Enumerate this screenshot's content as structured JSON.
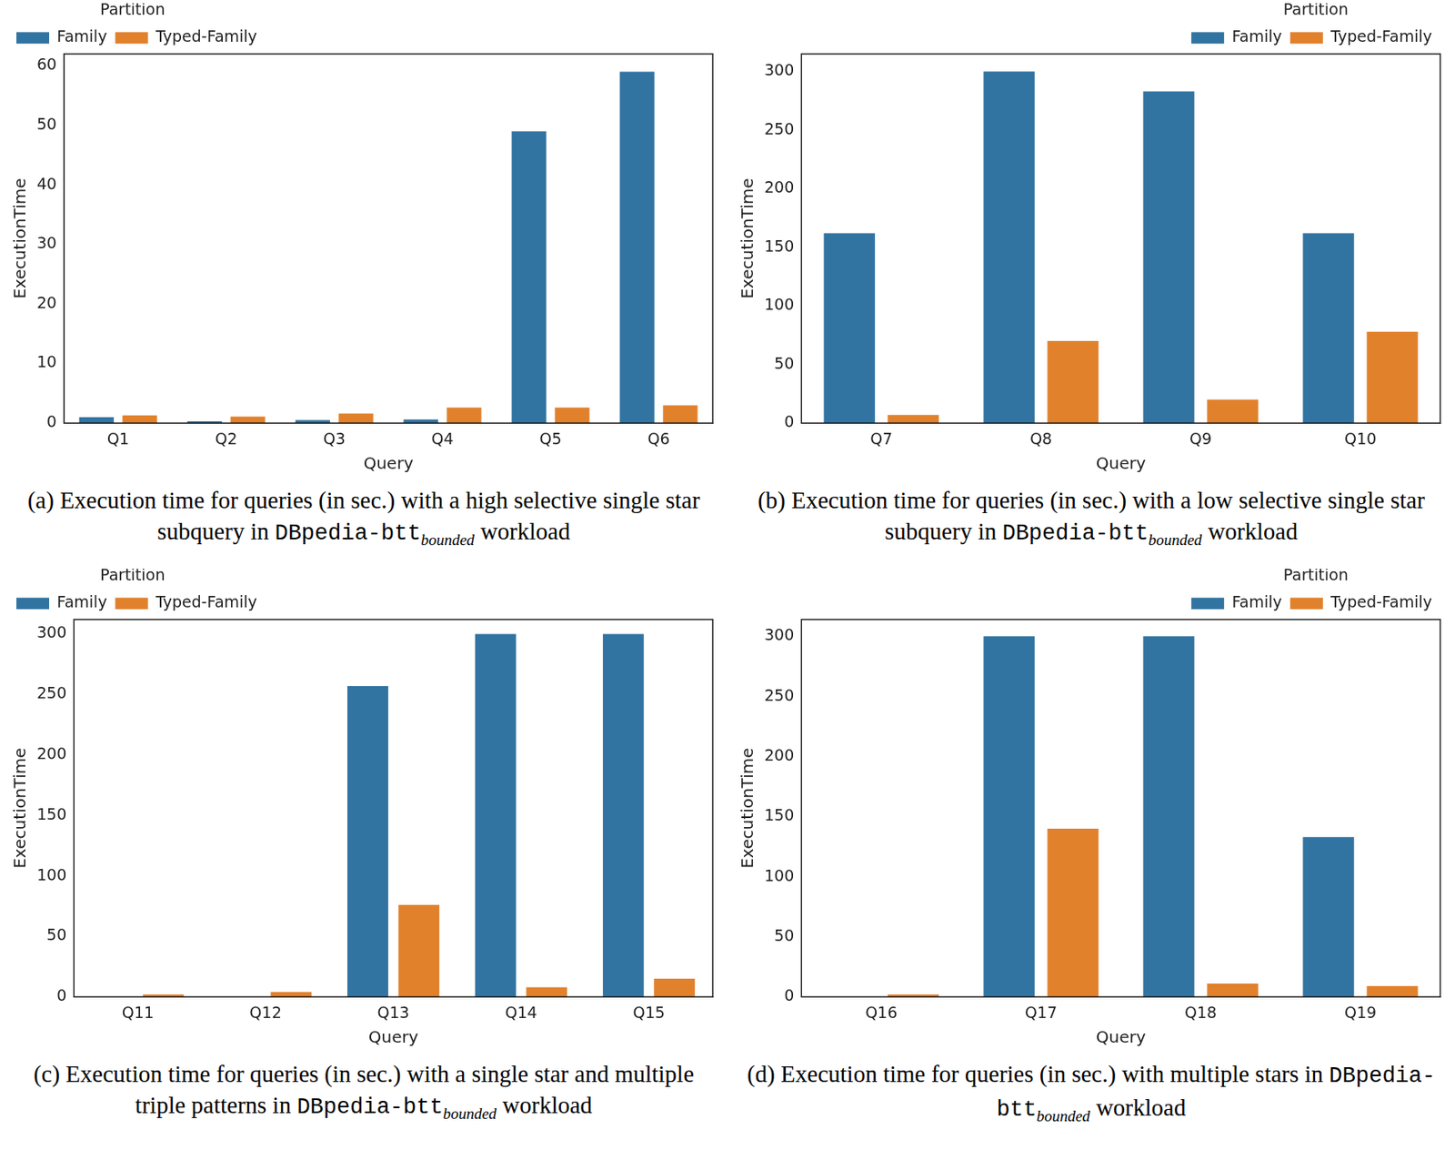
{
  "chart_data": [
    {
      "type": "bar",
      "x_label": "Query",
      "y_label": "ExecutionTime",
      "categories": [
        "Q1",
        "Q2",
        "Q3",
        "Q4",
        "Q5",
        "Q6"
      ],
      "series": [
        {
          "name": "Family",
          "color": "#3274a1",
          "values": [
            1.0,
            0.3,
            0.5,
            0.6,
            49,
            59
          ]
        },
        {
          "name": "Typed-Family",
          "color": "#e1812c",
          "values": [
            1.3,
            1.1,
            1.6,
            2.6,
            2.6,
            3.0
          ]
        }
      ],
      "legend_title": "Partition",
      "legend": "upper left",
      "ylim": [
        0,
        62
      ],
      "yticks": [
        0,
        10,
        20,
        30,
        40,
        50,
        60
      ],
      "grid": false,
      "caption": {
        "text": "(a) Execution time for queries (in sec.) with a high selective single star subquery in",
        "dataset": "DBpedia-btt",
        "subscript": "bounded",
        "suffix": "workload"
      }
    },
    {
      "type": "bar",
      "x_label": "Query",
      "y_label": "ExecutionTime",
      "categories": [
        "Q7",
        "Q8",
        "Q9",
        "Q10"
      ],
      "series": [
        {
          "name": "Family",
          "color": "#3274a1",
          "values": [
            162,
            300,
            283,
            162
          ]
        },
        {
          "name": "Typed-Family",
          "color": "#e1812c",
          "values": [
            7,
            70,
            20,
            78
          ]
        }
      ],
      "legend_title": "Partition",
      "legend": "upper right",
      "ylim": [
        0,
        315
      ],
      "yticks": [
        0,
        50,
        100,
        150,
        200,
        250,
        300
      ],
      "grid": false,
      "caption": {
        "text": "(b) Execution time for queries (in sec.) with a low selective single star subquery in",
        "dataset": "DBpedia-btt",
        "subscript": "bounded",
        "suffix": "workload"
      }
    },
    {
      "type": "bar",
      "x_label": "Query",
      "y_label": "ExecutionTime",
      "categories": [
        "Q11",
        "Q12",
        "Q13",
        "Q14",
        "Q15"
      ],
      "series": [
        {
          "name": "Family",
          "color": "#3274a1",
          "values": [
            null,
            null,
            257,
            300,
            300
          ]
        },
        {
          "name": "Typed-Family",
          "color": "#e1812c",
          "values": [
            2,
            4,
            76,
            8,
            15
          ]
        }
      ],
      "legend_title": "Partition",
      "legend": "upper left",
      "ylim": [
        0,
        312
      ],
      "yticks": [
        0,
        50,
        100,
        150,
        200,
        250,
        300
      ],
      "grid": false,
      "caption": {
        "text": "(c) Execution time for queries (in sec.) with a single star and multiple triple patterns in",
        "dataset": "DBpedia-btt",
        "subscript": "bounded",
        "suffix": "workload"
      }
    },
    {
      "type": "bar",
      "x_label": "Query",
      "y_label": "ExecutionTime",
      "categories": [
        "Q16",
        "Q17",
        "Q18",
        "Q19"
      ],
      "series": [
        {
          "name": "Family",
          "color": "#3274a1",
          "values": [
            null,
            300,
            300,
            133
          ]
        },
        {
          "name": "Typed-Family",
          "color": "#e1812c",
          "values": [
            2,
            140,
            11,
            9
          ]
        }
      ],
      "legend_title": "Partition",
      "legend": "upper right",
      "ylim": [
        0,
        314
      ],
      "yticks": [
        0,
        50,
        100,
        150,
        200,
        250,
        300
      ],
      "grid": false,
      "caption": {
        "text": "(d) Execution time for queries (in sec.) with multiple stars in",
        "dataset": "DBpedia-btt",
        "subscript": "bounded",
        "suffix": "workload"
      }
    }
  ]
}
